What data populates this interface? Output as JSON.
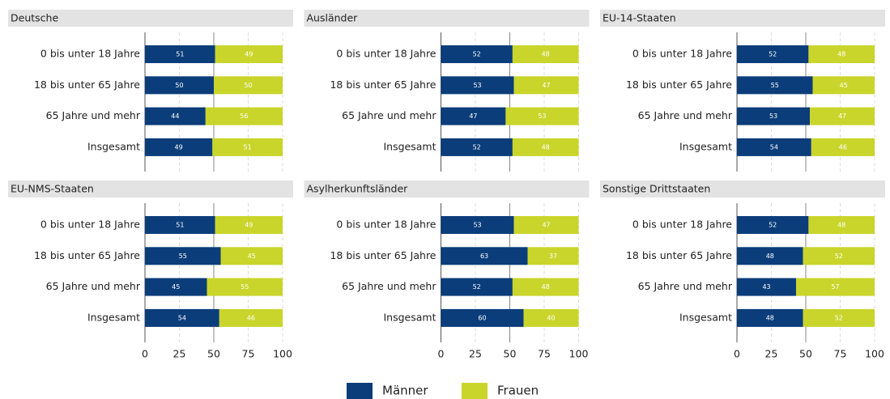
{
  "chart_data": [
    {
      "type": "stacked_barh",
      "title": "Deutsche",
      "categories": [
        "0 bis unter 18 Jahre",
        "18 bis unter 65 Jahre",
        "65 Jahre und mehr",
        "Insgesamt"
      ],
      "series": [
        {
          "name": "Männer",
          "color": "#0b3d7a",
          "values": [
            51,
            50,
            44,
            49
          ]
        },
        {
          "name": "Frauen",
          "color": "#c9d52b",
          "values": [
            49,
            50,
            56,
            51
          ]
        }
      ],
      "xlim": [
        0,
        100
      ],
      "xticks": [
        0,
        25,
        50,
        75,
        100
      ]
    },
    {
      "type": "stacked_barh",
      "title": "Ausländer",
      "categories": [
        "0 bis unter 18 Jahre",
        "18 bis unter 65 Jahre",
        "65 Jahre und mehr",
        "Insgesamt"
      ],
      "series": [
        {
          "name": "Männer",
          "color": "#0b3d7a",
          "values": [
            52,
            53,
            47,
            52
          ]
        },
        {
          "name": "Frauen",
          "color": "#c9d52b",
          "values": [
            48,
            47,
            53,
            48
          ]
        }
      ],
      "xlim": [
        0,
        100
      ],
      "xticks": [
        0,
        25,
        50,
        75,
        100
      ]
    },
    {
      "type": "stacked_barh",
      "title": "EU-14-Staaten",
      "categories": [
        "0 bis unter 18 Jahre",
        "18 bis unter 65 Jahre",
        "65 Jahre und mehr",
        "Insgesamt"
      ],
      "series": [
        {
          "name": "Männer",
          "color": "#0b3d7a",
          "values": [
            52,
            55,
            53,
            54
          ]
        },
        {
          "name": "Frauen",
          "color": "#c9d52b",
          "values": [
            48,
            45,
            47,
            46
          ]
        }
      ],
      "xlim": [
        0,
        100
      ],
      "xticks": [
        0,
        25,
        50,
        75,
        100
      ]
    },
    {
      "type": "stacked_barh",
      "title": "EU-NMS-Staaten",
      "categories": [
        "0 bis unter 18 Jahre",
        "18 bis unter 65 Jahre",
        "65 Jahre und mehr",
        "Insgesamt"
      ],
      "series": [
        {
          "name": "Männer",
          "color": "#0b3d7a",
          "values": [
            51,
            55,
            45,
            54
          ]
        },
        {
          "name": "Frauen",
          "color": "#c9d52b",
          "values": [
            49,
            45,
            55,
            46
          ]
        }
      ],
      "xlim": [
        0,
        100
      ],
      "xticks": [
        0,
        25,
        50,
        75,
        100
      ]
    },
    {
      "type": "stacked_barh",
      "title": "Asylherkunftsländer",
      "categories": [
        "0 bis unter 18 Jahre",
        "18 bis unter 65 Jahre",
        "65 Jahre und mehr",
        "Insgesamt"
      ],
      "series": [
        {
          "name": "Männer",
          "color": "#0b3d7a",
          "values": [
            53,
            63,
            52,
            60
          ]
        },
        {
          "name": "Frauen",
          "color": "#c9d52b",
          "values": [
            47,
            37,
            48,
            40
          ]
        }
      ],
      "xlim": [
        0,
        100
      ],
      "xticks": [
        0,
        25,
        50,
        75,
        100
      ]
    },
    {
      "type": "stacked_barh",
      "title": "Sonstige Drittstaaten",
      "categories": [
        "0 bis unter 18 Jahre",
        "18 bis unter 65 Jahre",
        "65 Jahre und mehr",
        "Insgesamt"
      ],
      "series": [
        {
          "name": "Männer",
          "color": "#0b3d7a",
          "values": [
            52,
            48,
            43,
            48
          ]
        },
        {
          "name": "Frauen",
          "color": "#c9d52b",
          "values": [
            48,
            52,
            57,
            52
          ]
        }
      ],
      "xlim": [
        0,
        100
      ],
      "xticks": [
        0,
        25,
        50,
        75,
        100
      ]
    }
  ]
}
